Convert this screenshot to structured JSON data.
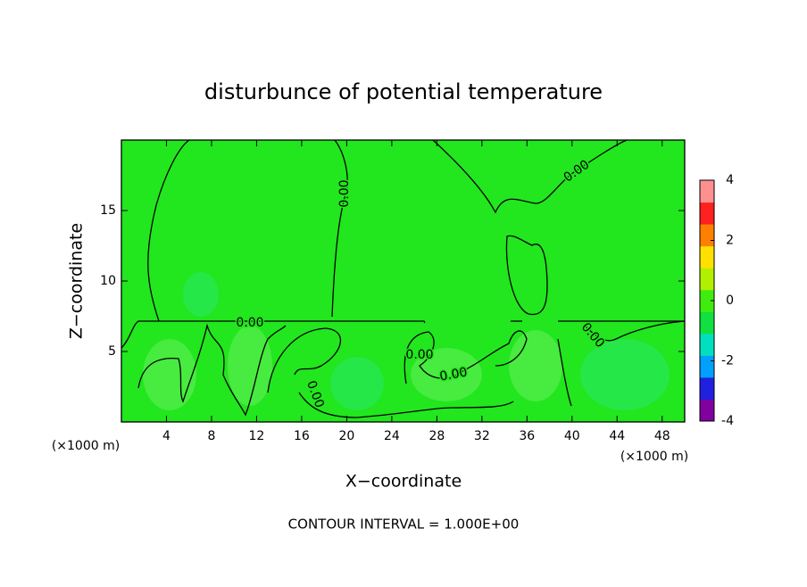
{
  "chart_data": {
    "type": "contour",
    "title": "disturbunce of potential temperature",
    "x_label": "X−coordinate",
    "y_label": "Z−coordinate",
    "x_unit": "(×1000 m)",
    "y_unit": "(×1000 m)",
    "footer": "CONTOUR INTERVAL = 1.000E+00",
    "contour_level": 0,
    "contour_labels": [
      "0.00",
      "0.00",
      "0.00",
      "0.00",
      "0.00",
      "0.00",
      "0.00"
    ],
    "xlim": [
      0,
      50
    ],
    "xticks": [
      4,
      8,
      12,
      16,
      20,
      24,
      28,
      32,
      36,
      40,
      44,
      48
    ],
    "ylim": [
      0,
      20
    ],
    "yticks": [
      5,
      10,
      15
    ],
    "field_color": "#22e61e",
    "colorbar": {
      "lim": [
        -4,
        4
      ],
      "ticks": [
        -4,
        -2,
        0,
        2,
        4
      ],
      "colors": [
        "#8000a0",
        "#2020e0",
        "#00a0ff",
        "#00e0c0",
        "#10e040",
        "#40ec10",
        "#b0f000",
        "#ffe000",
        "#ff8000",
        "#ff2020",
        "#ff9090"
      ]
    }
  }
}
